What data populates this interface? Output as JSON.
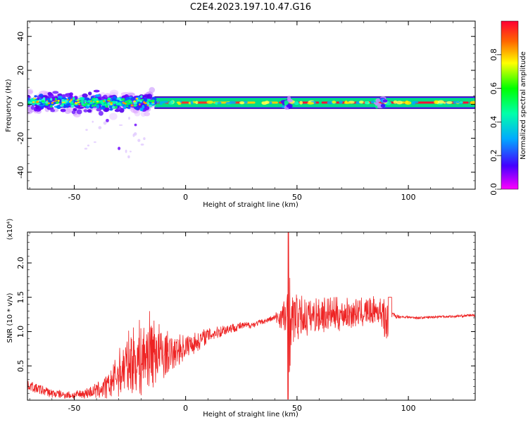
{
  "chart_data": [
    {
      "type": "heatmap",
      "title": "C2E4.2023.197.10.47.G16",
      "xlabel": "Height of straight line (km)",
      "ylabel": "Frequency (Hz)",
      "xlim": [
        -71,
        130
      ],
      "ylim": [
        -50,
        49
      ],
      "xticks": [
        -50,
        0,
        50,
        100
      ],
      "yticks": [
        -40,
        -20,
        0,
        20,
        40
      ],
      "colorbar": {
        "label": "Normalized spectral amplitude",
        "range": [
          0,
          1
        ],
        "ticks": [
          "0.0",
          "0.2",
          "0.4",
          "0.6",
          "0.8"
        ],
        "colormap": [
          "#ff00ff",
          "#4400ff",
          "#00aaff",
          "#00ffaa",
          "#00ff00",
          "#ffff00",
          "#ff6600",
          "#ff0033"
        ]
      },
      "trace": {
        "center_frequency_hz": 1,
        "band_edges_hz": [
          -2,
          4
        ],
        "noisy_region_km": [
          -71,
          -14
        ],
        "steady_region_km": [
          -14,
          130
        ]
      }
    },
    {
      "type": "line",
      "xlabel": "Height of straight line (km)",
      "ylabel": "SNR (10 * v/v)",
      "y_multiplier": "(x10⁴)",
      "xlim": [
        -71,
        130
      ],
      "ylim": [
        0,
        2.45
      ],
      "xticks": [
        -50,
        0,
        50,
        100
      ],
      "yticks": [
        "0.5",
        "1.0",
        "1.5",
        "2.0"
      ],
      "ytick_values": [
        0.5,
        1.0,
        1.5,
        2.0
      ],
      "color": "#ee2222",
      "series": [
        {
          "x": [
            -71,
            -65,
            -60,
            -55,
            -50,
            -45,
            -40,
            -35,
            -30,
            -25,
            -20,
            -15,
            -10,
            -5,
            0,
            5,
            10,
            15,
            20,
            25,
            30,
            35,
            40,
            45,
            46.5,
            50,
            55,
            60,
            65,
            70,
            75,
            80,
            85,
            88,
            90,
            92,
            95,
            100,
            105,
            110,
            115,
            120,
            125,
            130
          ],
          "y": [
            0.22,
            0.15,
            0.1,
            0.08,
            0.07,
            0.1,
            0.14,
            0.2,
            0.4,
            0.55,
            0.6,
            0.75,
            0.65,
            0.7,
            0.78,
            0.85,
            0.95,
            1.0,
            1.05,
            1.08,
            1.1,
            1.15,
            1.2,
            1.22,
            1.2,
            1.2,
            1.22,
            1.25,
            1.25,
            1.25,
            1.27,
            1.28,
            1.3,
            1.3,
            1.28,
            1.25,
            1.22,
            1.21,
            1.2,
            1.21,
            1.22,
            1.22,
            1.23,
            1.24
          ],
          "amplitude": [
            0.08,
            0.08,
            0.07,
            0.06,
            0.06,
            0.08,
            0.12,
            0.2,
            0.35,
            0.5,
            0.6,
            0.6,
            0.4,
            0.25,
            0.2,
            0.15,
            0.12,
            0.1,
            0.08,
            0.06,
            0.05,
            0.04,
            0.05,
            0.35,
            0.45,
            0.35,
            0.3,
            0.28,
            0.26,
            0.25,
            0.22,
            0.22,
            0.22,
            0.25,
            0.25,
            0.05,
            0.03,
            0.02,
            0.02,
            0.02,
            0.02,
            0.02,
            0.02,
            0.02
          ]
        }
      ]
    }
  ]
}
